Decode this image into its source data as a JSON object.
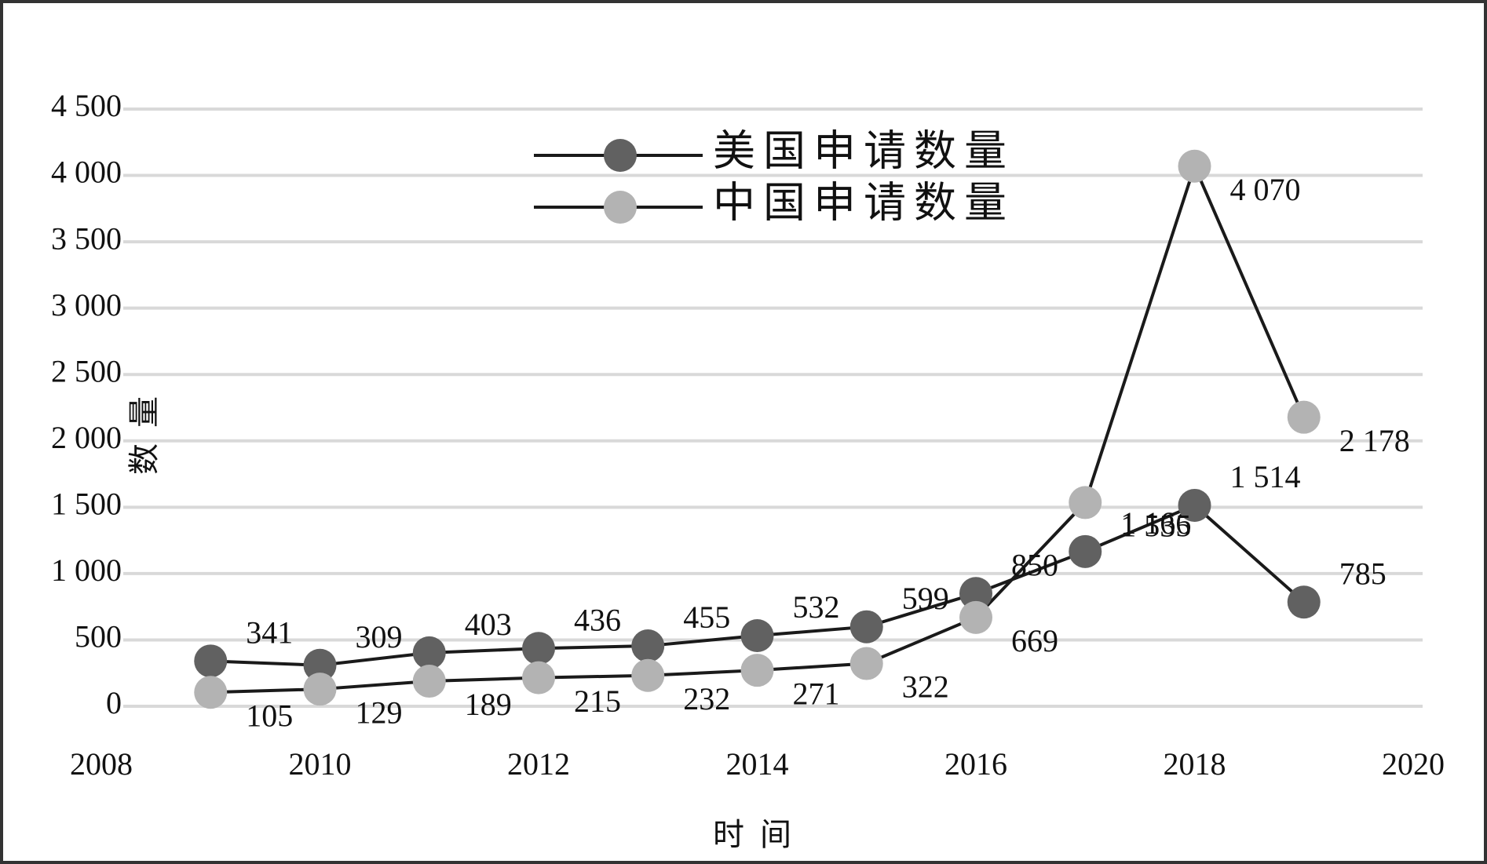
{
  "chart_data": {
    "type": "line",
    "x_label": "时间",
    "y_label": "数量",
    "x": [
      2009,
      2010,
      2011,
      2012,
      2013,
      2014,
      2015,
      2016,
      2017,
      2018,
      2019
    ],
    "series": [
      {
        "name": "美国申请数量",
        "color": "#616161",
        "values": [
          341,
          309,
          403,
          436,
          455,
          532,
          599,
          850,
          1166,
          1514,
          785
        ],
        "value_labels": [
          "341",
          "309",
          "403",
          "436",
          "455",
          "532",
          "599",
          "850",
          "1 166",
          "1 514",
          "785"
        ]
      },
      {
        "name": "中国申请数量",
        "color": "#b3b3b3",
        "values": [
          105,
          129,
          189,
          215,
          232,
          271,
          322,
          669,
          1535,
          4070,
          2178
        ],
        "value_labels": [
          "105",
          "129",
          "189",
          "215",
          "232",
          "271",
          "322",
          "669",
          "1 535",
          "4 070",
          "2 178"
        ]
      }
    ],
    "xlim": [
      2008,
      2020
    ],
    "xticks": [
      2008,
      2010,
      2012,
      2014,
      2016,
      2018,
      2020
    ],
    "ylim": [
      0,
      4500
    ],
    "yticks": [
      0,
      500,
      {
        "value": 1000,
        "label": "1 000"
      },
      {
        "value": 1500,
        "label": "1 500"
      },
      {
        "value": 2000,
        "label": "2 000"
      },
      {
        "value": 2500,
        "label": "2 500"
      },
      {
        "value": 3000,
        "label": "3 000"
      },
      {
        "value": 3500,
        "label": "3 500"
      },
      {
        "value": 4000,
        "label": "4 000"
      },
      {
        "value": 4500,
        "label": "4 500"
      }
    ],
    "grid": true,
    "legend": "top"
  }
}
